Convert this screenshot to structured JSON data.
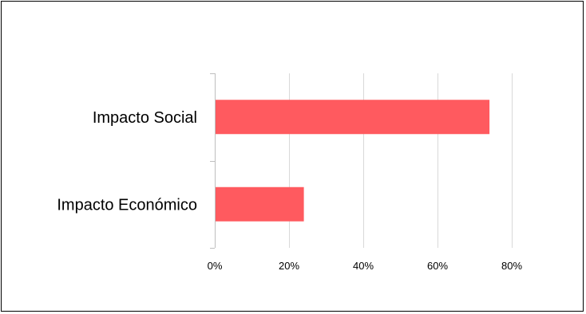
{
  "chart_data": {
    "type": "bar",
    "orientation": "horizontal",
    "categories": [
      "Impacto Social",
      "Impacto Económico"
    ],
    "values": [
      0.74,
      0.24
    ],
    "xlim": [
      0,
      0.8
    ],
    "xticks": [
      0,
      0.2,
      0.4,
      0.6,
      0.8
    ],
    "xtick_labels": [
      "0%",
      "20%",
      "40%",
      "60%",
      "80%"
    ],
    "grid": "vertical",
    "legend": "none",
    "bar_color": "#ff5a5f",
    "grid_color": "#d9d9d9",
    "axis_color": "#bfbfbf"
  }
}
